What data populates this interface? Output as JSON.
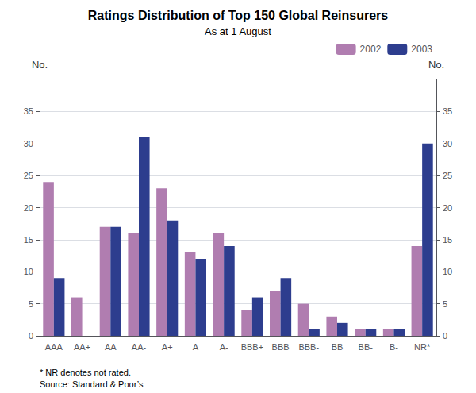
{
  "chart_data": {
    "type": "bar",
    "title": "Ratings Distribution of Top 150 Global Reinsurers",
    "subtitle": "As at 1 August",
    "ylabel": "No.",
    "y2label": "No.",
    "footnotes": [
      "* NR denotes not rated.",
      "Source: Standard & Poor’s"
    ],
    "categories": [
      "AAA",
      "AA+",
      "AA",
      "AA-",
      "A+",
      "A",
      "A-",
      "BBB+",
      "BBB",
      "BBB-",
      "BB",
      "BB-",
      "B-",
      "NR*"
    ],
    "series": [
      {
        "name": "2002",
        "color": "#b07db0",
        "values": [
          24,
          6,
          17,
          16,
          23,
          13,
          16,
          4,
          7,
          5,
          3,
          1,
          1,
          14
        ]
      },
      {
        "name": "2003",
        "color": "#2d3d8e",
        "values": [
          9,
          0,
          17,
          31,
          18,
          12,
          14,
          6,
          9,
          1,
          2,
          1,
          1,
          30
        ]
      }
    ],
    "ylim": [
      0,
      40
    ],
    "yticks": [
      0,
      5,
      10,
      15,
      20,
      25,
      30,
      35
    ],
    "y2lim": [
      0,
      40
    ],
    "y2ticks": [
      0,
      5,
      10,
      15,
      20,
      25,
      30,
      35
    ],
    "grid": true,
    "legend": "upper right"
  }
}
